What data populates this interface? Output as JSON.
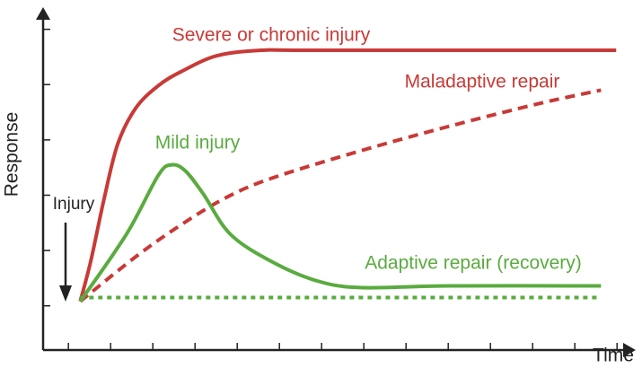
{
  "chart_data": {
    "type": "line",
    "xlabel": "Time",
    "ylabel": "Response",
    "annotation": "Injury",
    "xlim": [
      -0.6,
      13.4
    ],
    "ylim": [
      -0.8,
      5.4
    ],
    "xticks": [
      0,
      1,
      2,
      3,
      4,
      5,
      6,
      7,
      8,
      9,
      10,
      11,
      12,
      13
    ],
    "yticks": [
      0,
      1,
      2,
      3,
      4,
      5
    ],
    "series": [
      {
        "name": "Severe or chronic injury",
        "color": "#c83a37",
        "style": "solid",
        "x": [
          0.28,
          0.53,
          0.85,
          1.17,
          1.6,
          2.13,
          2.66,
          3.51,
          4.57,
          5.85,
          12.98
        ],
        "values": [
          0.08,
          0.81,
          1.95,
          2.93,
          3.58,
          3.98,
          4.23,
          4.52,
          4.62,
          4.62,
          4.62
        ]
      },
      {
        "name": "Maladaptive repair",
        "color": "#c83a37",
        "style": "dashed",
        "x": [
          0.28,
          1.6,
          2.66,
          3.72,
          4.79,
          6.91,
          9.04,
          11.17,
          12.62
        ],
        "values": [
          0.08,
          0.89,
          1.46,
          1.95,
          2.3,
          2.8,
          3.25,
          3.66,
          3.9
        ]
      },
      {
        "name": "Mild injury",
        "color": "#5aab3f",
        "style": "solid",
        "x": [
          0.28,
          1.38,
          2.13,
          2.45,
          2.77,
          3.19,
          3.83,
          4.79,
          5.85,
          6.91,
          9.04,
          12.62
        ],
        "values": [
          0.08,
          1.3,
          2.36,
          2.55,
          2.44,
          2.03,
          1.3,
          0.81,
          0.46,
          0.33,
          0.36,
          0.36
        ]
      },
      {
        "name": "Adaptive repair (recovery)",
        "color": "#5aab3f",
        "style": "dotted",
        "x": [
          0.28,
          12.62
        ],
        "values": [
          0.15,
          0.15
        ]
      }
    ]
  }
}
